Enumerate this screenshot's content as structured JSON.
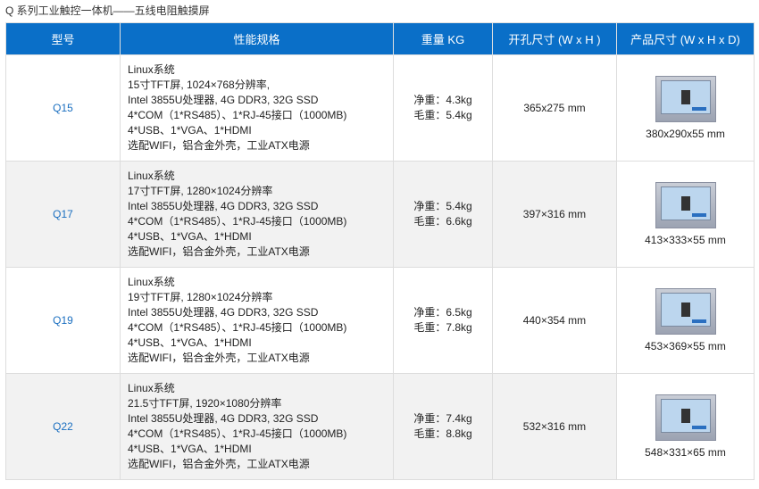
{
  "title": "Q 系列工业触控一体机——五线电阻触摸屏",
  "headers": [
    "型号",
    "性能规格",
    "重量 KG",
    "开孔尺寸 (W x H )",
    "产品尺寸 (W x H x D)"
  ],
  "rows": [
    {
      "model": "Q15",
      "specs": [
        "Linux系统",
        "15寸TFT屏, 1024×768分辨率,",
        "Intel 3855U处理器, 4G DDR3, 32G SSD",
        "4*COM（1*RS485）、1*RJ-45接口（1000MB)",
        "4*USB、1*VGA、1*HDMI",
        "选配WIFI，铝合金外壳，工业ATX电源"
      ],
      "net": "净重：4.3kg",
      "gross": "毛重：5.4kg",
      "cutout": "365x275 mm",
      "size": "380x290x55 mm"
    },
    {
      "model": "Q17",
      "specs": [
        "Linux系统",
        "17寸TFT屏, 1280×1024分辨率",
        "Intel 3855U处理器, 4G DDR3, 32G SSD",
        "4*COM（1*RS485）、1*RJ-45接口（1000MB)",
        "4*USB、1*VGA、1*HDMI",
        "选配WIFI，铝合金外壳，工业ATX电源"
      ],
      "net": "净重：5.4kg",
      "gross": "毛重：6.6kg",
      "cutout": "397×316 mm",
      "size": "413×333×55 mm"
    },
    {
      "model": "Q19",
      "specs": [
        "Linux系统",
        "19寸TFT屏, 1280×1024分辨率",
        "Intel 3855U处理器, 4G DDR3, 32G SSD",
        "4*COM（1*RS485）、1*RJ-45接口（1000MB)",
        "4*USB、1*VGA、1*HDMI",
        "选配WIFI，铝合金外壳，工业ATX电源"
      ],
      "net": "净重：6.5kg",
      "gross": "毛重：7.8kg",
      "cutout": "440×354 mm",
      "size": "453×369×55 mm"
    },
    {
      "model": "Q22",
      "specs": [
        "Linux系统",
        "21.5寸TFT屏, 1920×1080分辨率",
        " Intel 3855U处理器, 4G DDR3, 32G SSD",
        "4*COM（1*RS485）、1*RJ-45接口（1000MB)",
        "4*USB、1*VGA、1*HDMI",
        "选配WIFI，铝合金外壳，工业ATX电源"
      ],
      "net": "净重：7.4kg",
      "gross": "毛重：8.8kg",
      "cutout": "532×316 mm",
      "size": "548×331×65 mm"
    }
  ]
}
